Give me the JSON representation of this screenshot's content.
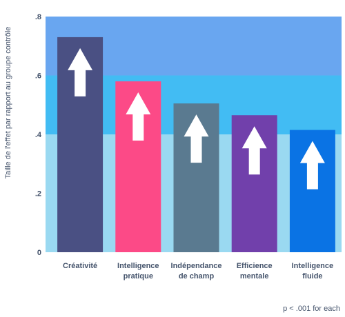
{
  "chart_data": {
    "type": "bar",
    "ylabel": "Taille de l'effet par rapport au groupe contrôle",
    "ylim": [
      0,
      0.8
    ],
    "yticks": [
      {
        "value": 0,
        "label": "0"
      },
      {
        "value": 0.2,
        "label": ".2"
      },
      {
        "value": 0.4,
        "label": ".4"
      },
      {
        "value": 0.6,
        "label": ".6"
      },
      {
        "value": 0.8,
        "label": ".8"
      }
    ],
    "categories": [
      [
        "Créativité"
      ],
      [
        "Intelligence",
        "pratique"
      ],
      [
        "Indépendance",
        "de champ"
      ],
      [
        "Efficience",
        "mentale"
      ],
      [
        "Intelligence",
        "fluide"
      ]
    ],
    "values": [
      0.73,
      0.58,
      0.505,
      0.465,
      0.415
    ],
    "bar_colors": [
      "#4a5083",
      "#fc4a87",
      "#5a7a90",
      "#7140ab",
      "#0a73e4"
    ],
    "background_bands": [
      {
        "from": 0,
        "to": 0.4,
        "color": "#9ad9f1"
      },
      {
        "from": 0.4,
        "to": 0.6,
        "color": "#42bcf3"
      },
      {
        "from": 0.6,
        "to": 0.8,
        "color": "#69a6f0"
      }
    ],
    "grid": false,
    "markers": "up-arrow",
    "note": "p < .001 for each"
  }
}
